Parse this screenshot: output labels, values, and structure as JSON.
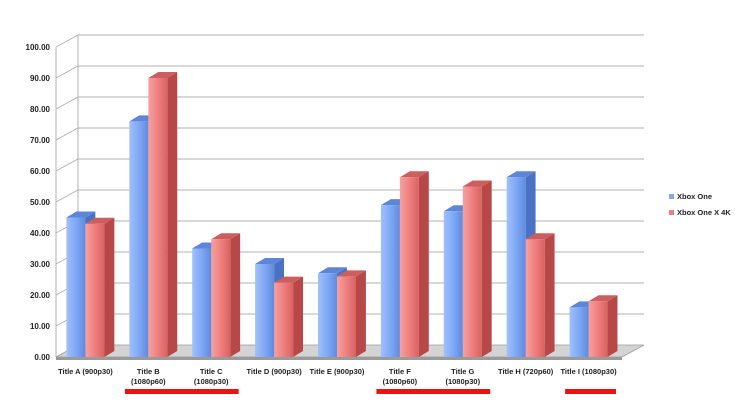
{
  "chart_data": {
    "type": "bar",
    "title": "",
    "xlabel": "",
    "ylabel": "",
    "ylim": [
      0,
      100
    ],
    "ytick_step": 10,
    "ytick_labels": [
      "0.00",
      "10.00",
      "20.00",
      "30.00",
      "40.00",
      "50.00",
      "60.00",
      "70.00",
      "80.00",
      "90.00",
      "100.00"
    ],
    "grid": true,
    "legend_position": "right",
    "categories": [
      [
        "Title A (900p30)"
      ],
      [
        "Title B",
        "(1080p60)"
      ],
      [
        "Title C",
        "(1080p30)"
      ],
      [
        "Title D (900p30)"
      ],
      [
        "Title E (900p30)"
      ],
      [
        "Title F",
        "(1080p60)"
      ],
      [
        "Title G",
        "(1080p30)"
      ],
      [
        "Title H (720p60)"
      ],
      [
        "Title I (1080p30)"
      ]
    ],
    "series": [
      {
        "name": "Xbox One",
        "values": [
          45,
          76,
          35,
          30,
          27,
          49,
          47,
          58,
          16
        ]
      },
      {
        "name": "Xbox One X 4K",
        "values": [
          43,
          90,
          38,
          24,
          26,
          58,
          55,
          38,
          18
        ]
      }
    ],
    "colors": {
      "series": [
        "#7fa8f5",
        "#ef7f7f"
      ],
      "series_dark": [
        "#4a72c4",
        "#b84848"
      ],
      "series_top": [
        "#5d86d8",
        "#cc5e5e"
      ],
      "highlight_bar": "#ee1111",
      "grid": "#b0b0b0",
      "floor": "#d4d4d4"
    },
    "highlight_groups": [
      [
        1,
        2
      ],
      [
        5,
        6
      ],
      [
        8,
        8
      ]
    ]
  }
}
